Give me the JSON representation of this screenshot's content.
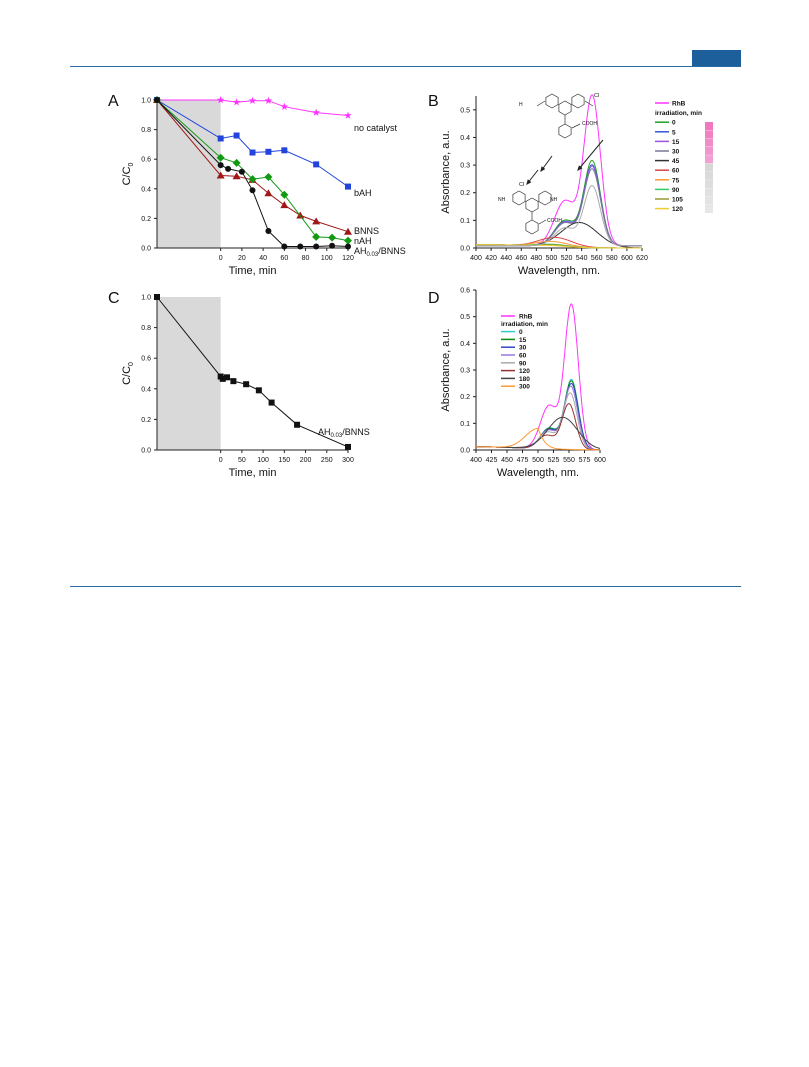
{
  "header_badge_color": "#1d5f9a",
  "rule_color": "#2a6aa0",
  "chart_data": [
    {
      "type": "line",
      "panel_letter": "A",
      "xlabel": "Time, min",
      "ylabel": "C/C",
      "ylabel_sub": "0",
      "xlim": [
        -60,
        120
      ],
      "ylim": [
        0,
        1.0
      ],
      "xticks": [
        0,
        20,
        40,
        60,
        80,
        100,
        120
      ],
      "yticks": [
        0.0,
        0.2,
        0.4,
        0.6,
        0.8,
        1.0
      ],
      "dark_period": [
        -60,
        0
      ],
      "dark_color": "#d9d9d9",
      "series": [
        {
          "name": "no catalyst",
          "color": "#ff33ff",
          "marker": "star",
          "x": [
            -60,
            0,
            15,
            30,
            45,
            60,
            90,
            120
          ],
          "y": [
            1.0,
            1.0,
            0.985,
            0.995,
            0.995,
            0.955,
            0.915,
            0.895
          ]
        },
        {
          "name": "bAH",
          "color": "#2244dd",
          "marker": "square",
          "x": [
            -60,
            0,
            15,
            30,
            45,
            60,
            90,
            120
          ],
          "y": [
            1.0,
            0.74,
            0.76,
            0.645,
            0.65,
            0.66,
            0.565,
            0.415
          ]
        },
        {
          "name": "BNNS",
          "color": "#a01818",
          "marker": "triangle",
          "x": [
            -60,
            0,
            15,
            30,
            45,
            60,
            75,
            90,
            120
          ],
          "y": [
            1.0,
            0.49,
            0.485,
            0.46,
            0.37,
            0.29,
            0.22,
            0.18,
            0.11
          ]
        },
        {
          "name": "nAH",
          "color": "#119911",
          "marker": "diamond",
          "x": [
            -60,
            0,
            15,
            30,
            45,
            60,
            90,
            105,
            120
          ],
          "y": [
            1.0,
            0.61,
            0.575,
            0.465,
            0.48,
            0.36,
            0.075,
            0.07,
            0.05
          ]
        },
        {
          "name": "AH",
          "name_sub": "0.03",
          "name_suffix": "/BNNS",
          "color": "#111111",
          "marker": "circle",
          "x": [
            -60,
            0,
            7,
            20,
            30,
            45,
            60,
            75,
            90,
            105,
            120
          ],
          "y": [
            1.0,
            0.56,
            0.535,
            0.515,
            0.39,
            0.115,
            0.01,
            0.01,
            0.01,
            0.015,
            0.01
          ]
        }
      ]
    },
    {
      "type": "line",
      "panel_letter": "B",
      "xlabel": "Wavelength, nm.",
      "ylabel": "Absorbance, a.u.",
      "xlim": [
        400,
        620
      ],
      "ylim": [
        0,
        0.55
      ],
      "xticks": [
        400,
        420,
        440,
        460,
        480,
        500,
        520,
        540,
        560,
        580,
        600,
        620
      ],
      "yticks": [
        0.0,
        0.1,
        0.2,
        0.3,
        0.4,
        0.5
      ],
      "legend_title": "RhB",
      "legend_subtitle": "irradiation, min",
      "chloride_label": "Cl",
      "cooh_label": "COOH",
      "nh2_label": "NH",
      "h3c_label": "H",
      "peak_wavelength": 554,
      "series": [
        {
          "name": "RhB",
          "color": "#ff33ff",
          "peak": 0.54
        },
        {
          "name": "0",
          "color": "#20a020",
          "peak": 0.305
        },
        {
          "name": "5",
          "color": "#3355dd",
          "peak": 0.29
        },
        {
          "name": "15",
          "color": "#9955dd",
          "peak": 0.285
        },
        {
          "name": "30",
          "color": "#777799",
          "peak": 0.275
        },
        {
          "name": "45",
          "color": "#333333",
          "peak": 0.09,
          "peak_wl": 537
        },
        {
          "name": "60",
          "color": "#dd4444",
          "peak": 0.035,
          "peak_wl": 505
        },
        {
          "name": "75",
          "color": "#ff9933",
          "peak": 0.02,
          "peak_wl": 500
        },
        {
          "name": "90",
          "color": "#33cc66",
          "peak": 0.01,
          "peak_wl": 500
        },
        {
          "name": "105",
          "color": "#999933",
          "peak": 0.008,
          "peak_wl": 500
        },
        {
          "name": "120",
          "color": "#eecc33",
          "peak": 0.005,
          "peak_wl": 500
        }
      ],
      "extra_curve_peak": 0.215
    },
    {
      "type": "line",
      "panel_letter": "C",
      "xlabel": "Time, min",
      "ylabel": "C/C",
      "ylabel_sub": "0",
      "xlim": [
        -150,
        300
      ],
      "ylim": [
        0,
        1.0
      ],
      "xticks": [
        0,
        50,
        100,
        150,
        200,
        250,
        300
      ],
      "yticks": [
        0.0,
        0.2,
        0.4,
        0.6,
        0.8,
        1.0
      ],
      "dark_period": [
        -150,
        0
      ],
      "dark_color": "#d9d9d9",
      "series": [
        {
          "name": "AH",
          "name_sub": "0.03",
          "name_suffix": "/BNNS",
          "color": "#111111",
          "marker": "square",
          "x": [
            -150,
            0,
            5,
            15,
            30,
            60,
            90,
            120,
            180,
            300
          ],
          "y": [
            1.0,
            0.48,
            0.465,
            0.475,
            0.45,
            0.43,
            0.39,
            0.31,
            0.165,
            0.02
          ]
        }
      ]
    },
    {
      "type": "line",
      "panel_letter": "D",
      "xlabel": "Wavelength, nm.",
      "ylabel": "Absorbance, a.u.",
      "xlim": [
        400,
        600
      ],
      "ylim": [
        0,
        0.6
      ],
      "xticks": [
        400,
        425,
        450,
        475,
        500,
        525,
        550,
        575,
        600
      ],
      "yticks": [
        0.0,
        0.1,
        0.2,
        0.3,
        0.4,
        0.5,
        0.6
      ],
      "legend_title": "RhB",
      "legend_subtitle": "irradiation, min",
      "series": [
        {
          "name": "RhB",
          "color": "#ff33ff",
          "peak": 0.54,
          "peak_wl": 554
        },
        {
          "name": "0",
          "color": "#33cccc",
          "peak": 0.26,
          "peak_wl": 554
        },
        {
          "name": "15",
          "color": "#118811",
          "peak": 0.255,
          "peak_wl": 554
        },
        {
          "name": "30",
          "color": "#3344cc",
          "peak": 0.245,
          "peak_wl": 554
        },
        {
          "name": "60",
          "color": "#9977dd",
          "peak": 0.235,
          "peak_wl": 553
        },
        {
          "name": "90",
          "color": "#aaaaaa",
          "peak": 0.21,
          "peak_wl": 552
        },
        {
          "name": "120",
          "color": "#993333",
          "peak": 0.17,
          "peak_wl": 550
        },
        {
          "name": "180",
          "color": "#444444",
          "peak": 0.12,
          "peak_wl": 540
        },
        {
          "name": "300",
          "color": "#ff9933",
          "peak": 0.075,
          "peak_wl": 500
        }
      ]
    }
  ]
}
